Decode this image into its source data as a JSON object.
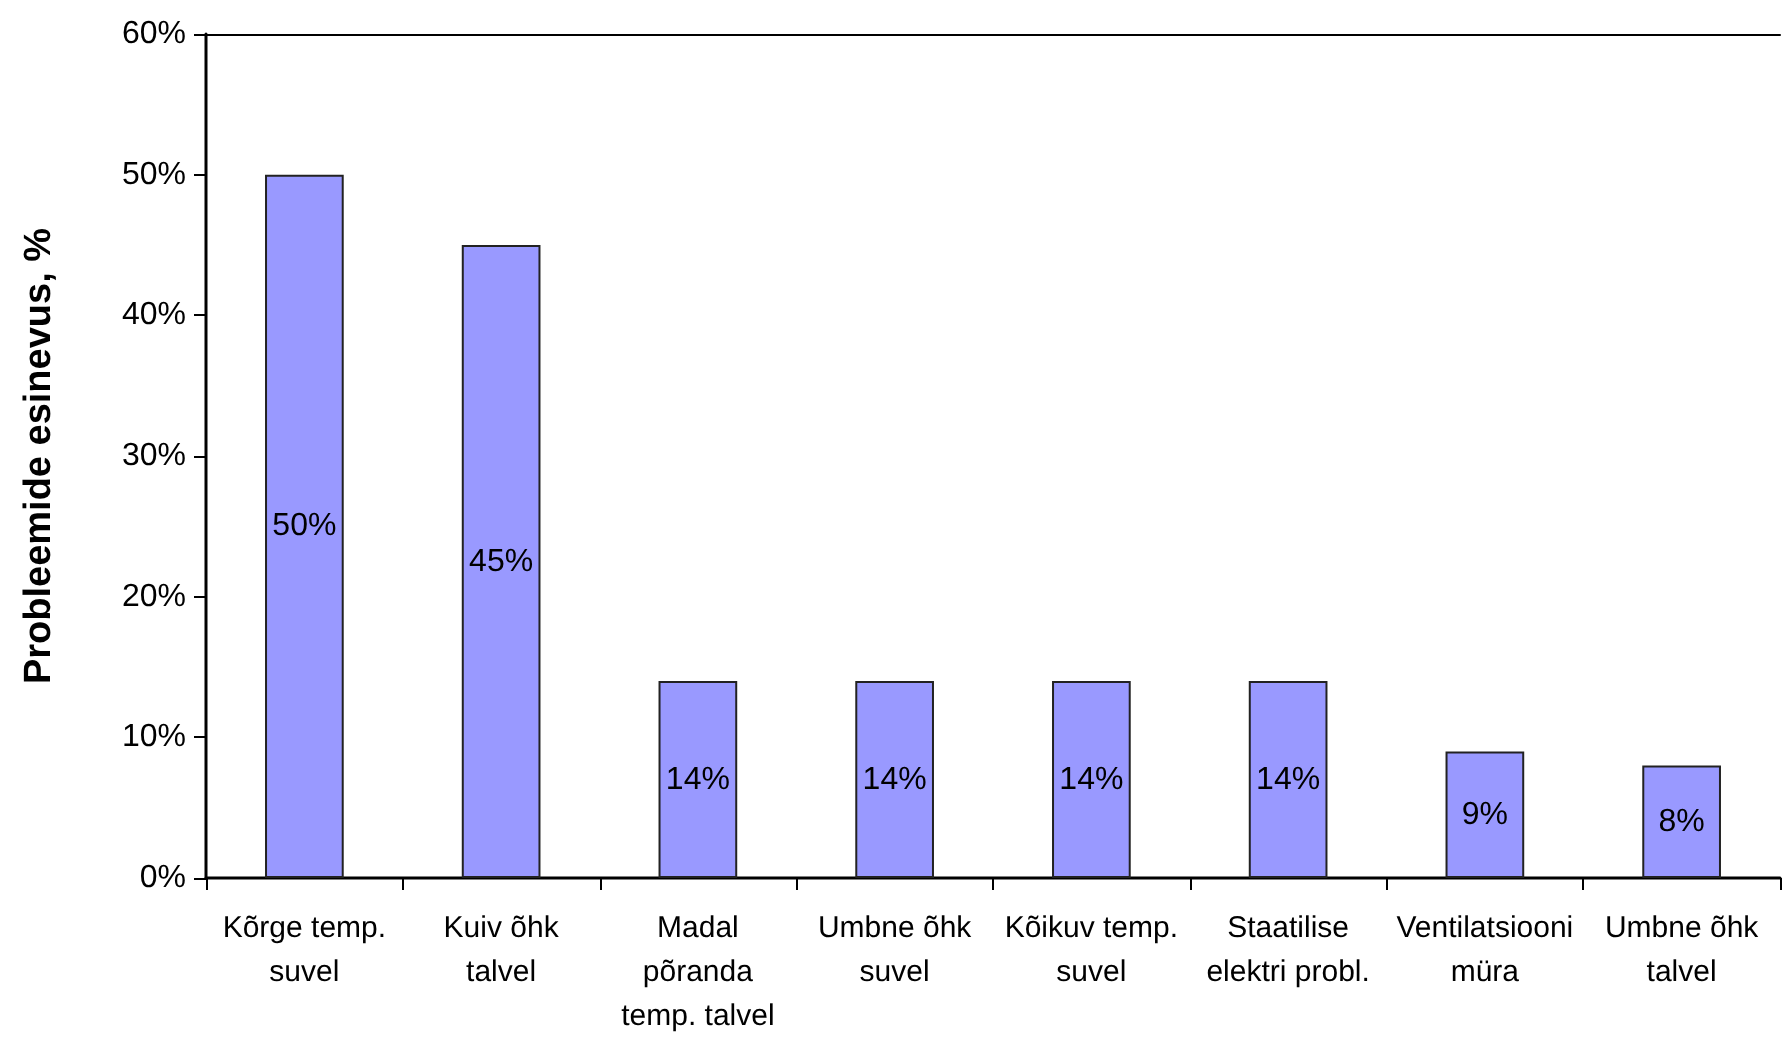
{
  "chart_data": {
    "type": "bar",
    "ylabel": "Probleemide esinevus, %",
    "categories": [
      "Kõrge temp.\nsuvel",
      "Kuiv õhk\ntalvel",
      "Madal\npõranda\ntemp. talvel",
      "Umbne õhk\nsuvel",
      "Kõikuv temp.\nsuvel",
      "Staatilise\nelektri probl.",
      "Ventilatsiooni\nmüra",
      "Umbne õhk\ntalvel"
    ],
    "values": [
      50,
      45,
      14,
      14,
      14,
      14,
      9,
      8
    ],
    "color": "#9999ff",
    "value_labels": [
      "50%",
      "45%",
      "14%",
      "14%",
      "14%",
      "14%",
      "9%",
      "8%"
    ],
    "ylim": [
      0,
      60
    ],
    "yticks": [
      {
        "value": 0,
        "label": "0%"
      },
      {
        "value": 10,
        "label": "10%"
      },
      {
        "value": 20,
        "label": "20%"
      },
      {
        "value": 30,
        "label": "30%"
      },
      {
        "value": 40,
        "label": "40%"
      },
      {
        "value": 50,
        "label": "50%"
      },
      {
        "value": 60,
        "label": "60%"
      }
    ],
    "grid": false
  }
}
